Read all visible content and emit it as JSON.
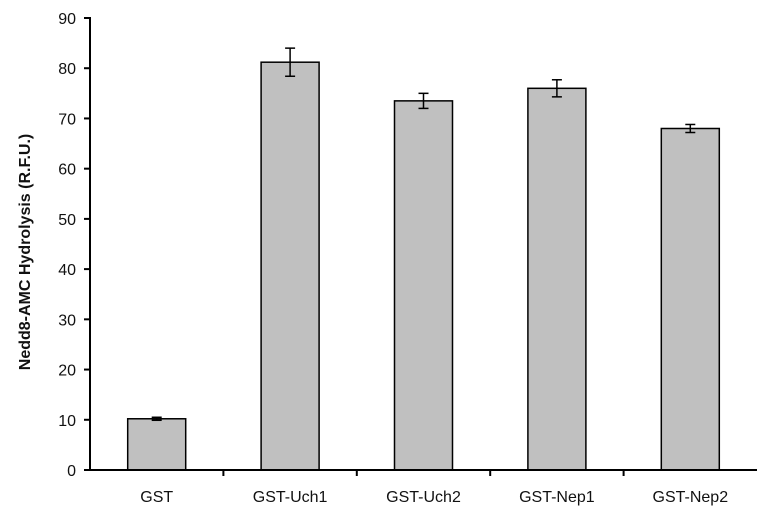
{
  "chart_data": {
    "type": "bar",
    "title": "",
    "xlabel": "",
    "ylabel": "Nedd8-AMC Hydrolysis (R.F.U.)",
    "ylim": [
      0,
      90
    ],
    "yticks": [
      0,
      10,
      20,
      30,
      40,
      50,
      60,
      70,
      80,
      90
    ],
    "categories": [
      "GST",
      "GST-Uch1",
      "GST-Uch2",
      "GST-Nep1",
      "GST-Nep2"
    ],
    "values": [
      10.2,
      81.2,
      73.5,
      76.0,
      68.0
    ],
    "errors": [
      0.3,
      2.8,
      1.5,
      1.7,
      0.8
    ],
    "grid": false,
    "bar_color": "#c0c0c0",
    "edge_color": "#000000"
  }
}
